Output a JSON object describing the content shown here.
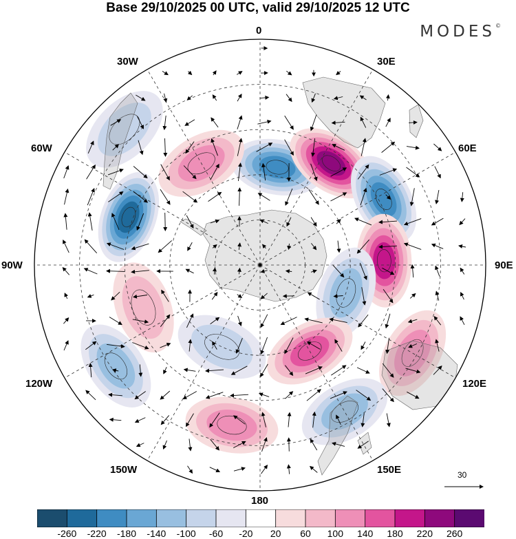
{
  "header": {
    "title": "Base 29/10/2025 00 UTC, valid 29/10/2025 12 UTC",
    "brand": "MODES",
    "brand_mark": "©"
  },
  "map": {
    "projection": "south-polar-stereographic",
    "longitude_labels": {
      "lon_0": "0",
      "lon_30e": "30E",
      "lon_60e": "60E",
      "lon_90e": "90E",
      "lon_120e": "120E",
      "lon_150e": "150E",
      "lon_180": "180",
      "lon_150w": "150W",
      "lon_120w": "120W",
      "lon_90w": "90W",
      "lon_60w": "60W",
      "lon_30w": "30W"
    },
    "vector_scale": {
      "value": "30"
    },
    "anomaly_centers": [
      {
        "lon": 10,
        "r": 0.44,
        "value": -200
      },
      {
        "lon": 35,
        "r": 0.55,
        "value": 230
      },
      {
        "lon": 62,
        "r": 0.62,
        "value": -210
      },
      {
        "lon": 88,
        "r": 0.55,
        "value": 200
      },
      {
        "lon": 108,
        "r": 0.4,
        "value": -130
      },
      {
        "lon": 150,
        "r": 0.44,
        "value": 150
      },
      {
        "lon": 120,
        "r": 0.78,
        "value": 110
      },
      {
        "lon": 150,
        "r": 0.75,
        "value": -110
      },
      {
        "lon": 190,
        "r": 0.72,
        "value": 130
      },
      {
        "lon": 235,
        "r": 0.78,
        "value": -110
      },
      {
        "lon": 250,
        "r": 0.55,
        "value": 100
      },
      {
        "lon": 290,
        "r": 0.62,
        "value": -230
      },
      {
        "lon": 330,
        "r": 0.52,
        "value": 140
      },
      {
        "lon": 315,
        "r": 0.85,
        "value": -70
      },
      {
        "lon": 205,
        "r": 0.4,
        "value": -90
      }
    ]
  },
  "colorbar": {
    "levels": [
      "-260",
      "-220",
      "-180",
      "-140",
      "-100",
      "-60",
      "-20",
      "20",
      "60",
      "100",
      "140",
      "180",
      "220",
      "260"
    ],
    "colors": [
      "#1b4d6e",
      "#1f6a9b",
      "#3f8cc2",
      "#6aa7d4",
      "#98bfe0",
      "#c5d4ea",
      "#e6e6f1",
      "#ffffff",
      "#f7dcdd",
      "#f3b9c9",
      "#ee8fb7",
      "#e3549f",
      "#c4168a",
      "#8e097c",
      "#5b0a71"
    ]
  }
}
